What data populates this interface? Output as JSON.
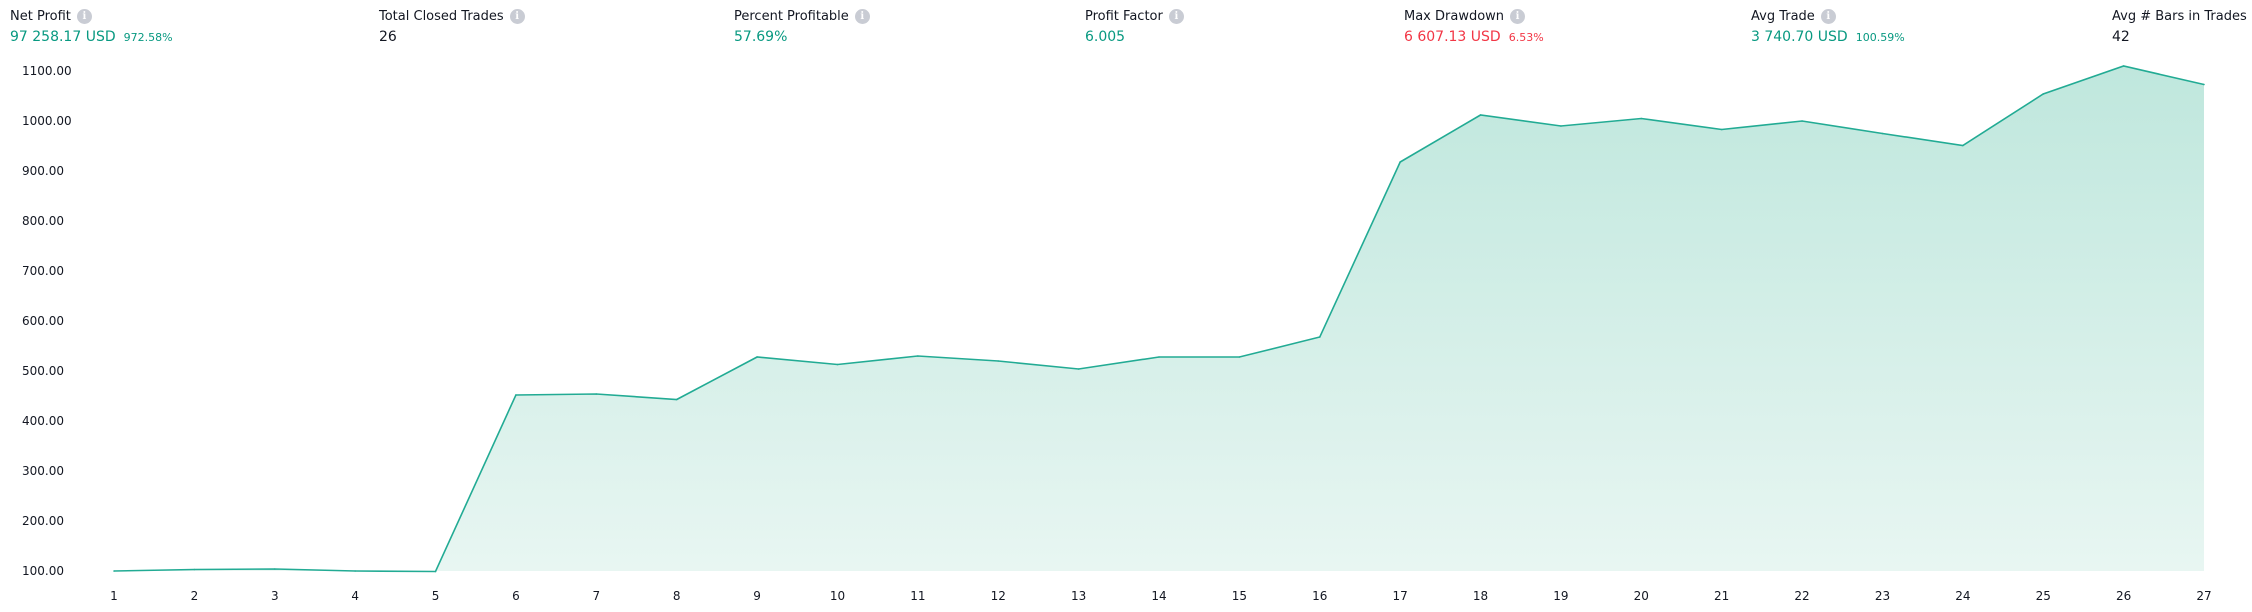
{
  "stats": {
    "net_profit": {
      "label": "Net Profit",
      "value": "97 258.17 USD",
      "sub": "972.58%"
    },
    "total_closed_trades": {
      "label": "Total Closed Trades",
      "value": "26"
    },
    "percent_profitable": {
      "label": "Percent Profitable",
      "value": "57.69%"
    },
    "profit_factor": {
      "label": "Profit Factor",
      "value": "6.005"
    },
    "max_drawdown": {
      "label": "Max Drawdown",
      "value": "6 607.13 USD",
      "sub": "6.53%"
    },
    "avg_trade": {
      "label": "Avg Trade",
      "value": "3 740.70 USD",
      "sub": "100.59%"
    },
    "avg_bars": {
      "label": "Avg # Bars in Trades",
      "value": "42"
    }
  },
  "colors": {
    "positive": "#089981",
    "negative": "#f23645",
    "line": "#22ab94",
    "area_top": "#bfe7dd",
    "area_bottom": "#e8f6f2",
    "info_icon": "#c9ccd4"
  },
  "icons": {
    "info": "info-circle-icon"
  },
  "chart_data": {
    "type": "area",
    "x": [
      1,
      2,
      3,
      4,
      5,
      6,
      7,
      8,
      9,
      10,
      11,
      12,
      13,
      14,
      15,
      16,
      17,
      18,
      19,
      20,
      21,
      22,
      23,
      24,
      25,
      26,
      27
    ],
    "values": [
      100,
      103,
      104,
      100,
      99,
      452,
      454,
      443,
      528,
      513,
      530,
      520,
      504,
      528,
      528,
      568,
      918,
      1012,
      990,
      1005,
      983,
      1000,
      975,
      951,
      1054,
      1110,
      1073
    ],
    "yticks": [
      "100.00",
      "200.00",
      "300.00",
      "400.00",
      "500.00",
      "600.00",
      "700.00",
      "800.00",
      "900.00",
      "1000.00",
      "1100.00"
    ],
    "ylim": [
      100,
      1100
    ],
    "xlim": [
      1,
      27
    ],
    "title": "",
    "xlabel": "",
    "ylabel": "",
    "grid": false,
    "legend": "none"
  }
}
